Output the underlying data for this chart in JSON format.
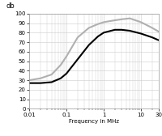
{
  "title": "",
  "ylabel": "db",
  "xlabel": "Frequency in MHz",
  "xlim": [
    0.01,
    30
  ],
  "ylim": [
    0,
    100
  ],
  "yticks": [
    0,
    10,
    20,
    30,
    40,
    50,
    60,
    70,
    80,
    90,
    100
  ],
  "black_line": {
    "x": [
      0.01,
      0.02,
      0.04,
      0.07,
      0.1,
      0.2,
      0.4,
      0.7,
      1.0,
      2.0,
      3.0,
      5.0,
      10.0,
      20.0,
      30.0
    ],
    "y": [
      27,
      27,
      28,
      32,
      37,
      52,
      67,
      76,
      80,
      83,
      83,
      82,
      79,
      75,
      72
    ]
  },
  "gray_line": {
    "x": [
      0.01,
      0.02,
      0.04,
      0.07,
      0.1,
      0.2,
      0.4,
      0.7,
      1.0,
      2.0,
      3.0,
      5.0,
      10.0,
      20.0,
      30.0
    ],
    "y": [
      30,
      32,
      36,
      46,
      55,
      75,
      85,
      89,
      91,
      93,
      94,
      95,
      91,
      85,
      81
    ]
  },
  "black_color": "#000000",
  "gray_color": "#b0b0b0",
  "line_width": 1.5,
  "background_color": "#ffffff",
  "grid_color": "#cccccc"
}
